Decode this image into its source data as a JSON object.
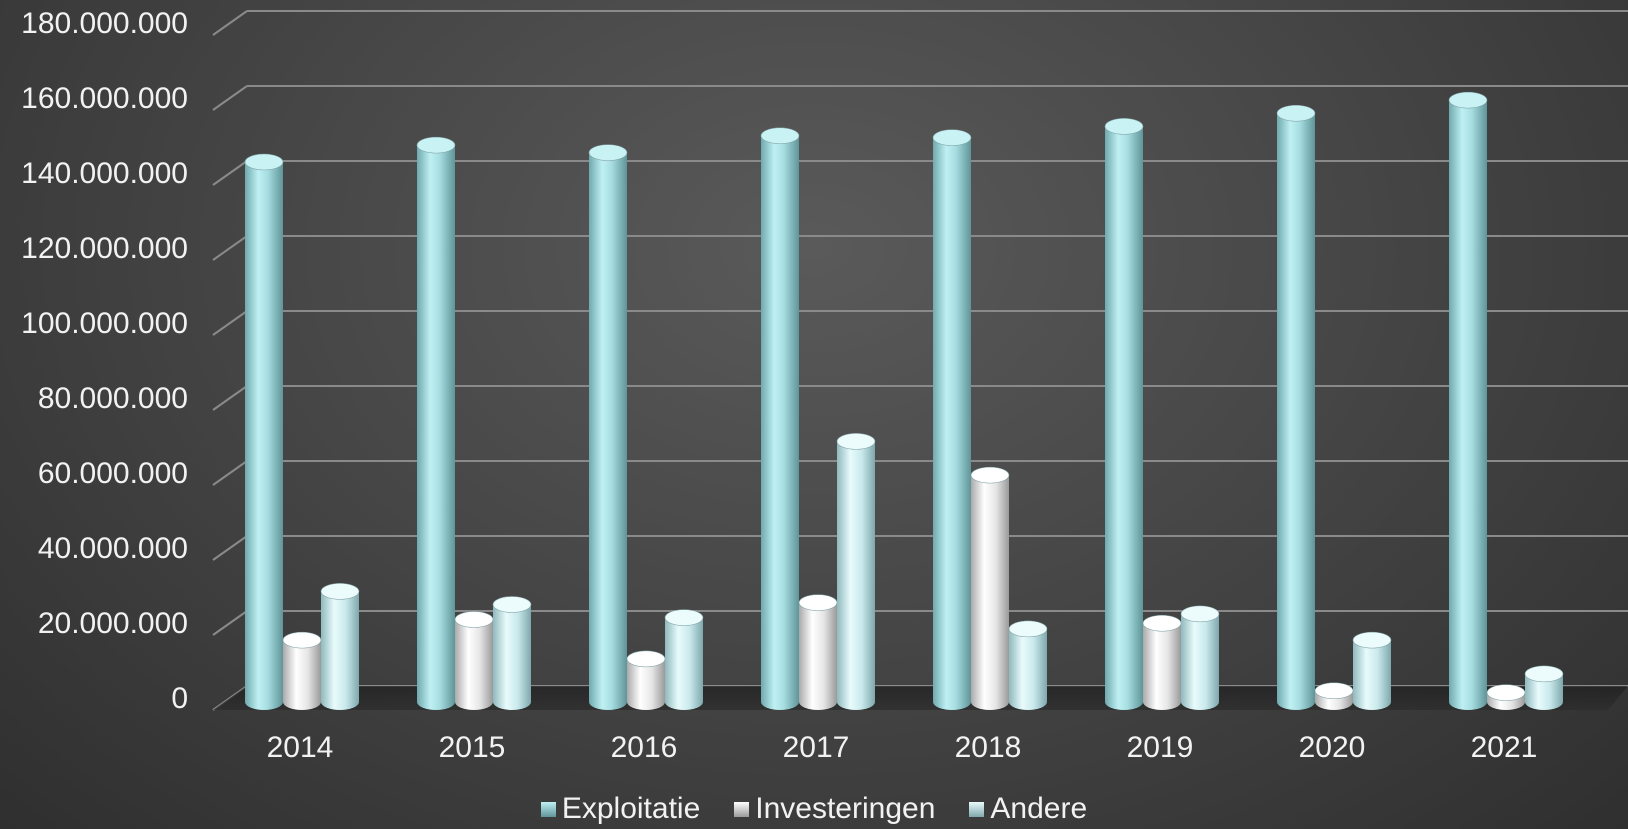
{
  "chart_data": {
    "type": "bar",
    "categories": [
      "2014",
      "2015",
      "2016",
      "2017",
      "2018",
      "2019",
      "2020",
      "2021"
    ],
    "series": [
      {
        "name": "Exploitatie",
        "values": [
          144000000,
          148500000,
          146500000,
          151000000,
          150500000,
          153500000,
          157000000,
          160500000
        ]
      },
      {
        "name": "Investeringen",
        "values": [
          16500000,
          22000000,
          11500000,
          26500000,
          60500000,
          21000000,
          3000000,
          2500000
        ]
      },
      {
        "name": "Andere",
        "values": [
          29500000,
          26000000,
          22500000,
          69500000,
          19500000,
          23500000,
          16500000,
          7500000
        ]
      }
    ],
    "ylim": [
      0,
      180000000
    ],
    "y_ticks": [
      "0",
      "20.000.000",
      "40.000.000",
      "60.000.000",
      "80.000.000",
      "100.000.000",
      "120.000.000",
      "140.000.000",
      "160.000.000",
      "180.000.000"
    ],
    "grid": true,
    "legend_position": "bottom",
    "style": "3d-cylinder",
    "colors": {
      "Exploitatie": "#9fd8dc",
      "Investeringen": "#e8e8e8",
      "Andere": "#b9e1e6",
      "background": "#454545",
      "gridline": "#8a8a8a",
      "text": "#f2f2f2"
    }
  }
}
